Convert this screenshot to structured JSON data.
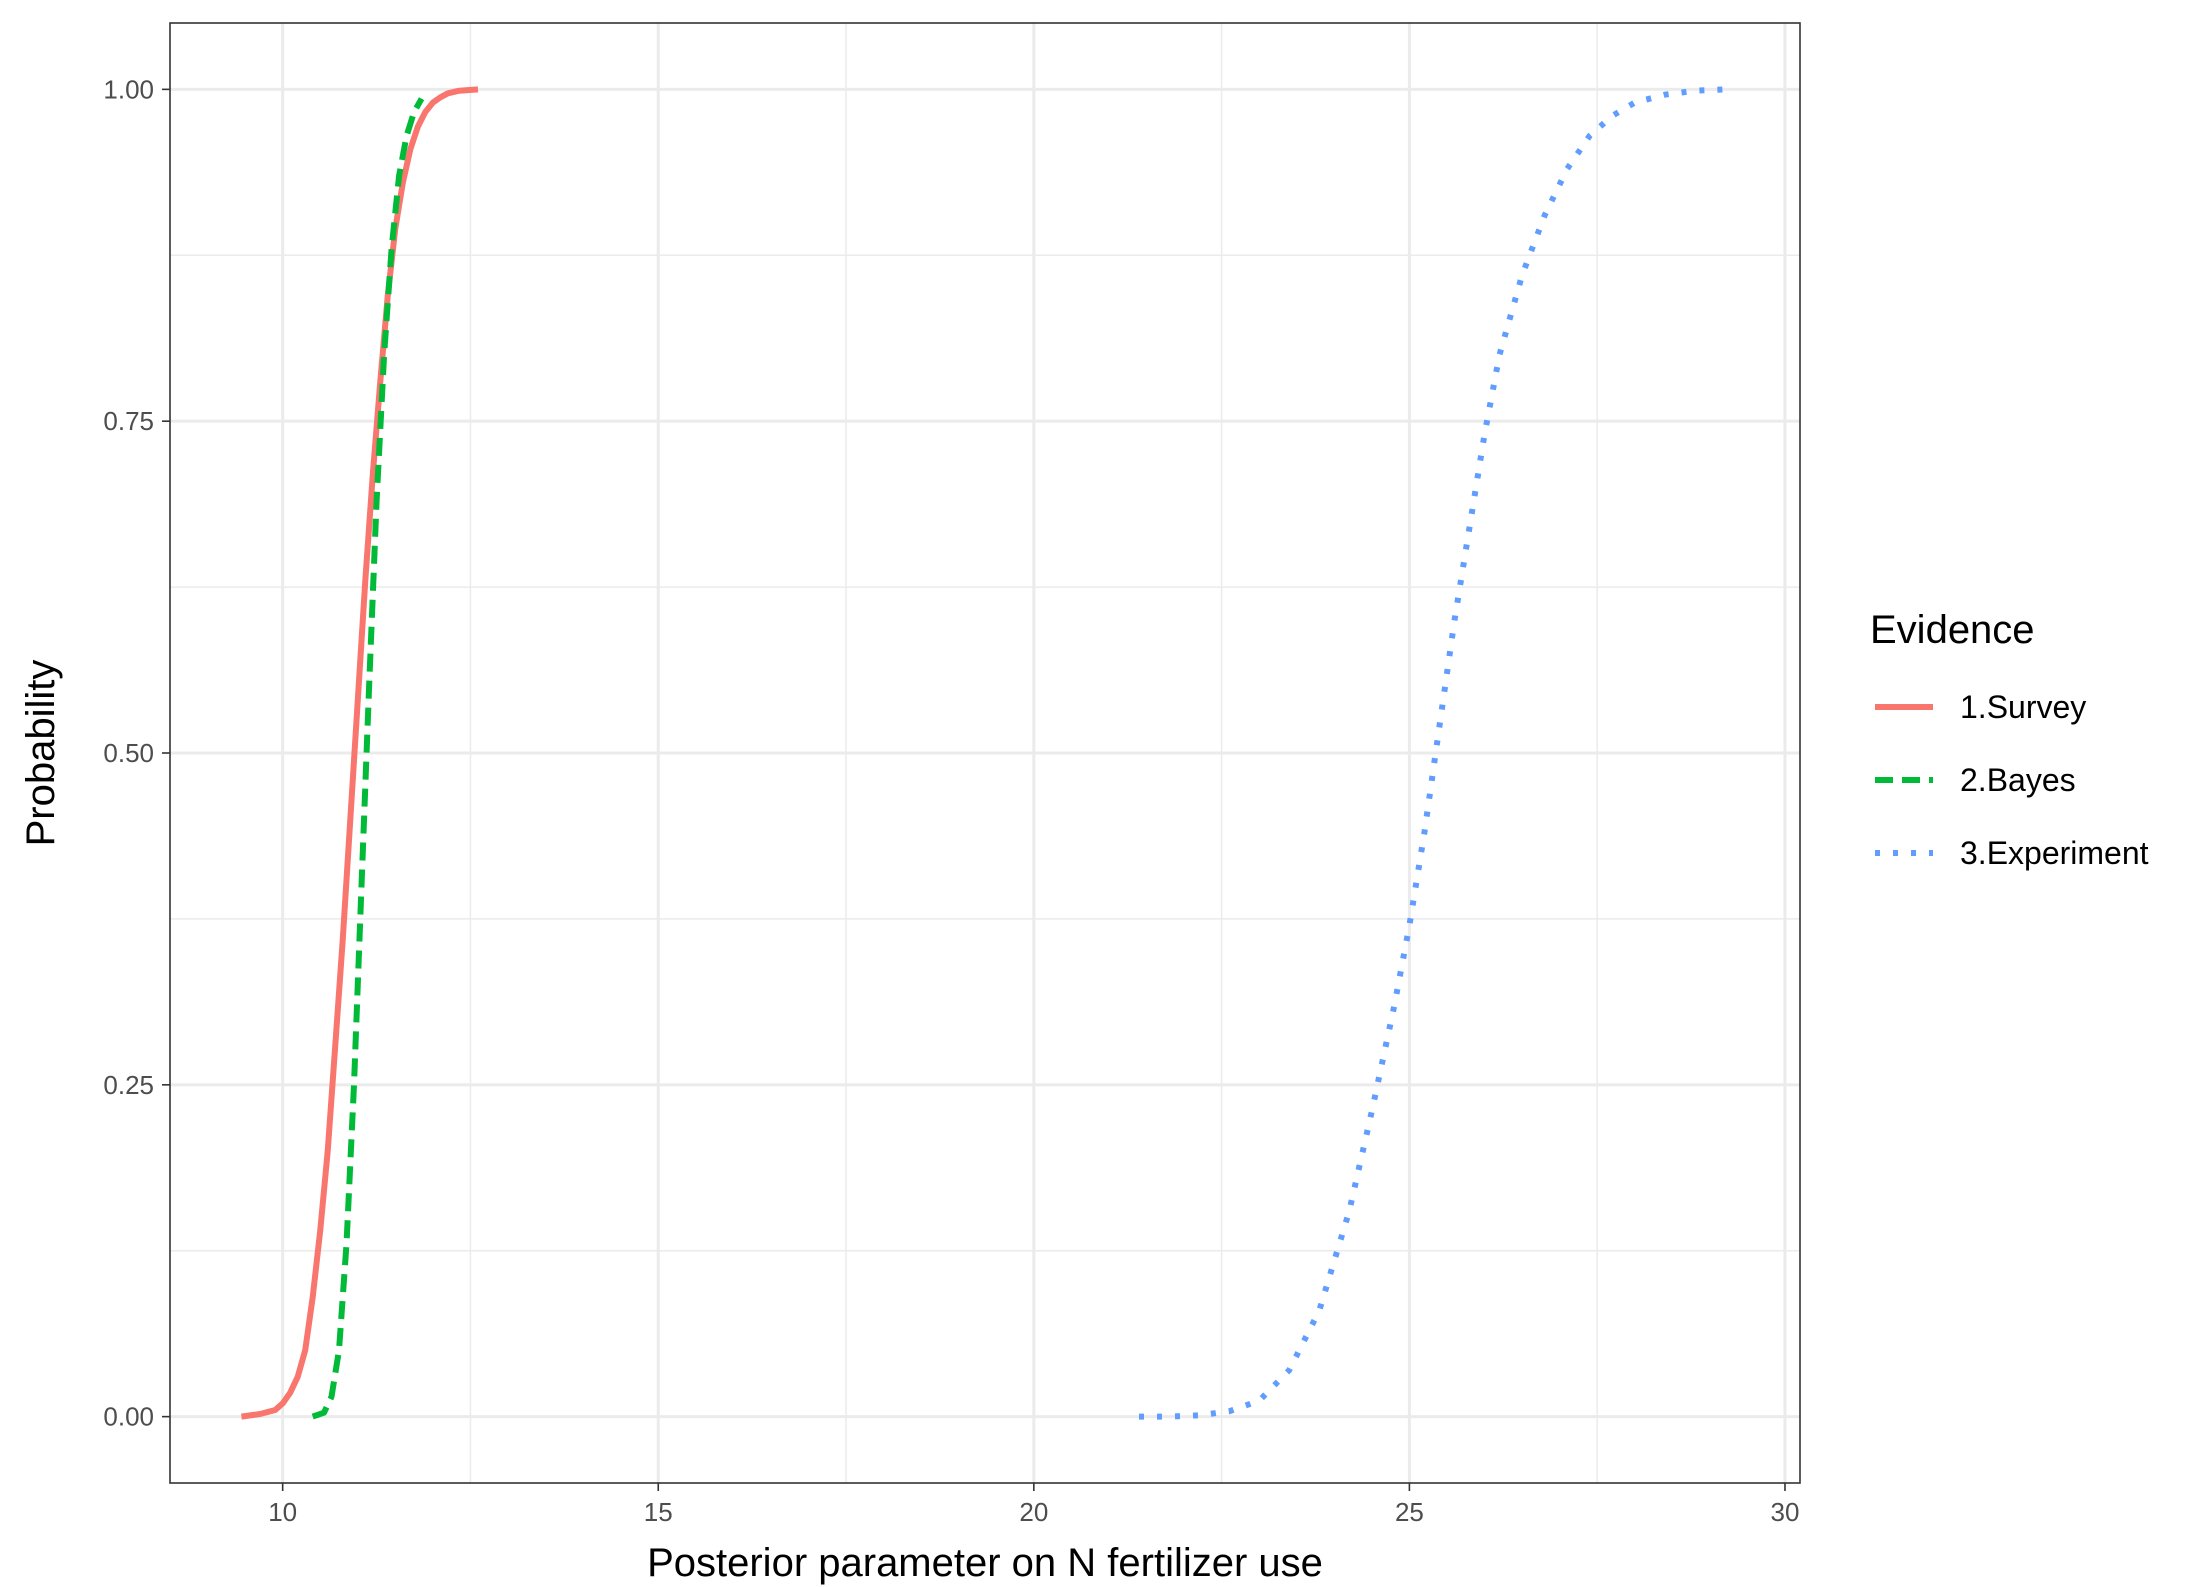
{
  "chart_data": {
    "type": "line",
    "title": "",
    "xlabel": "Posterior parameter on N fertilizer use",
    "ylabel": "Probability",
    "xlim": [
      8.5,
      30.2
    ],
    "ylim": [
      -0.05,
      1.05
    ],
    "x_ticks": [
      10,
      15,
      20,
      25,
      30
    ],
    "y_ticks": [
      0.0,
      0.25,
      0.5,
      0.75,
      1.0
    ],
    "x_tick_labels": [
      "10",
      "15",
      "20",
      "25",
      "30"
    ],
    "y_tick_labels": [
      "0.00",
      "0.25",
      "0.50",
      "0.75",
      "1.00"
    ],
    "grid": true,
    "legend": {
      "title": "Evidence",
      "position": "right"
    },
    "series": [
      {
        "name": "1.Survey",
        "color": "#F8766D",
        "linetype": "solid",
        "x": [
          9.45,
          9.7,
          9.9,
          10.0,
          10.1,
          10.2,
          10.3,
          10.4,
          10.5,
          10.6,
          10.7,
          10.8,
          10.9,
          11.0,
          11.1,
          11.2,
          11.3,
          11.4,
          11.5,
          11.6,
          11.7,
          11.8,
          11.9,
          12.0,
          12.1,
          12.2,
          12.35,
          12.6
        ],
        "y": [
          0.0,
          0.002,
          0.005,
          0.01,
          0.018,
          0.03,
          0.05,
          0.09,
          0.14,
          0.2,
          0.28,
          0.36,
          0.45,
          0.54,
          0.63,
          0.71,
          0.78,
          0.845,
          0.895,
          0.93,
          0.955,
          0.972,
          0.983,
          0.99,
          0.994,
          0.997,
          0.999,
          1.0
        ]
      },
      {
        "name": "2.Bayes",
        "color": "#00BA38",
        "linetype": "dashed",
        "x": [
          10.4,
          10.55,
          10.65,
          10.75,
          10.85,
          10.95,
          11.05,
          11.15,
          11.25,
          11.35,
          11.45,
          11.55,
          11.65,
          11.75,
          11.85
        ],
        "y": [
          0.0,
          0.003,
          0.015,
          0.05,
          0.13,
          0.25,
          0.4,
          0.55,
          0.69,
          0.8,
          0.88,
          0.935,
          0.965,
          0.983,
          0.993
        ]
      },
      {
        "name": "3.Experiment",
        "color": "#619CFF",
        "linetype": "dotted",
        "x": [
          21.4,
          21.8,
          22.2,
          22.6,
          23.0,
          23.4,
          23.8,
          24.2,
          24.5,
          24.8,
          25.0,
          25.2,
          25.4,
          25.6,
          25.8,
          26.0,
          26.2,
          26.5,
          26.8,
          27.1,
          27.4,
          27.7,
          28.0,
          28.4,
          28.8,
          29.2
        ],
        "y": [
          0.0,
          0.0,
          0.001,
          0.004,
          0.012,
          0.035,
          0.08,
          0.155,
          0.23,
          0.31,
          0.37,
          0.44,
          0.52,
          0.6,
          0.67,
          0.74,
          0.8,
          0.86,
          0.905,
          0.94,
          0.965,
          0.98,
          0.99,
          0.996,
          0.999,
          1.0
        ]
      }
    ]
  }
}
